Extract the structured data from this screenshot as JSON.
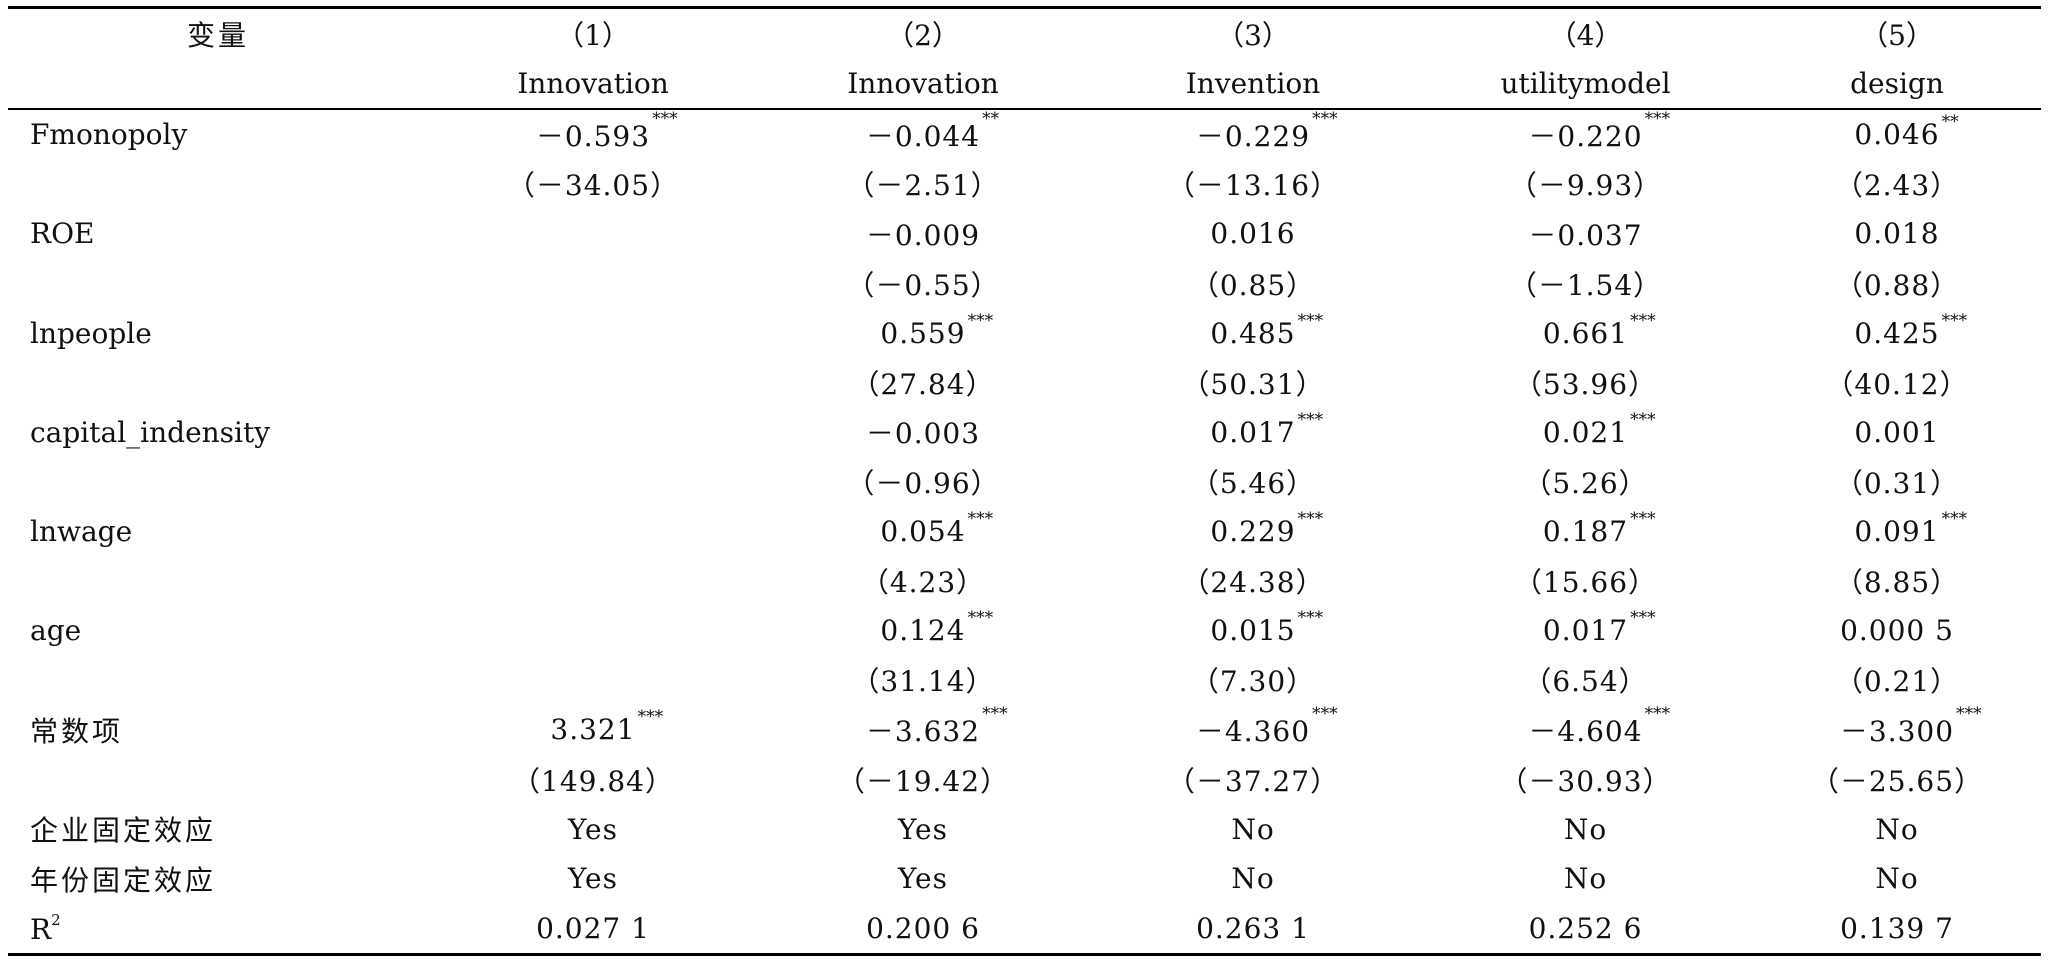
{
  "table": {
    "header_col0": "变量",
    "col_numbers": [
      "（1）",
      "（2）",
      "（3）",
      "（4）",
      "（5）"
    ],
    "col_names": [
      "Innovation",
      "Innovation",
      "Invention",
      "utilitymodel",
      "design"
    ],
    "rows": [
      {
        "label": "Fmonopoly",
        "label_sup": "",
        "coef": [
          {
            "v": "－0.593",
            "s": "***"
          },
          {
            "v": "－0.044",
            "s": "**"
          },
          {
            "v": "－0.229",
            "s": "***"
          },
          {
            "v": "－0.220",
            "s": "***"
          },
          {
            "v": "0.046",
            "s": "**"
          }
        ],
        "t": [
          "（－34.05）",
          "（－2.51）",
          "（－13.16）",
          "（－9.93）",
          "（2.43）"
        ]
      },
      {
        "label": "ROE",
        "label_sup": "",
        "coef": [
          {
            "v": "",
            "s": ""
          },
          {
            "v": "－0.009",
            "s": ""
          },
          {
            "v": "0.016",
            "s": ""
          },
          {
            "v": "－0.037",
            "s": ""
          },
          {
            "v": "0.018",
            "s": ""
          }
        ],
        "t": [
          "",
          "（－0.55）",
          "（0.85）",
          "（－1.54）",
          "（0.88）"
        ]
      },
      {
        "label": "lnpeople",
        "label_sup": "",
        "coef": [
          {
            "v": "",
            "s": ""
          },
          {
            "v": "0.559",
            "s": "***"
          },
          {
            "v": "0.485",
            "s": "***"
          },
          {
            "v": "0.661",
            "s": "***"
          },
          {
            "v": "0.425",
            "s": "***"
          }
        ],
        "t": [
          "",
          "（27.84）",
          "（50.31）",
          "（53.96）",
          "（40.12）"
        ]
      },
      {
        "label": "capital_indensity",
        "label_sup": "",
        "coef": [
          {
            "v": "",
            "s": ""
          },
          {
            "v": "－0.003",
            "s": ""
          },
          {
            "v": "0.017",
            "s": "***"
          },
          {
            "v": "0.021",
            "s": "***"
          },
          {
            "v": "0.001",
            "s": ""
          }
        ],
        "t": [
          "",
          "（－0.96）",
          "（5.46）",
          "（5.26）",
          "（0.31）"
        ]
      },
      {
        "label": "lnwage",
        "label_sup": "",
        "coef": [
          {
            "v": "",
            "s": ""
          },
          {
            "v": "0.054",
            "s": "***"
          },
          {
            "v": "0.229",
            "s": "***"
          },
          {
            "v": "0.187",
            "s": "***"
          },
          {
            "v": "0.091",
            "s": "***"
          }
        ],
        "t": [
          "",
          "（4.23）",
          "（24.38）",
          "（15.66）",
          "（8.85）"
        ]
      },
      {
        "label": "age",
        "label_sup": "",
        "coef": [
          {
            "v": "",
            "s": ""
          },
          {
            "v": "0.124",
            "s": "***"
          },
          {
            "v": "0.015",
            "s": "***"
          },
          {
            "v": "0.017",
            "s": "***"
          },
          {
            "v": "0.000 5",
            "s": ""
          }
        ],
        "t": [
          "",
          "（31.14）",
          "（7.30）",
          "（6.54）",
          "（0.21）"
        ]
      },
      {
        "label": "常数项",
        "label_sup": "",
        "coef": [
          {
            "v": "3.321",
            "s": "***"
          },
          {
            "v": "－3.632",
            "s": "***"
          },
          {
            "v": "－4.360",
            "s": "***"
          },
          {
            "v": "－4.604",
            "s": "***"
          },
          {
            "v": "－3.300",
            "s": "***"
          }
        ],
        "t": [
          "（149.84）",
          "（－19.42）",
          "（－37.27）",
          "（－30.93）",
          "（－25.65）"
        ]
      }
    ],
    "footer_rows": [
      {
        "label": "企业固定效应",
        "label_sup": "",
        "vals": [
          "Yes",
          "Yes",
          "No",
          "No",
          "No"
        ]
      },
      {
        "label": "年份固定效应",
        "label_sup": "",
        "vals": [
          "Yes",
          "Yes",
          "No",
          "No",
          "No"
        ]
      },
      {
        "label": "R",
        "label_sup": "2",
        "vals": [
          "0.027 1",
          "0.200 6",
          "0.263 1",
          "0.252 6",
          "0.139 7"
        ]
      }
    ]
  }
}
